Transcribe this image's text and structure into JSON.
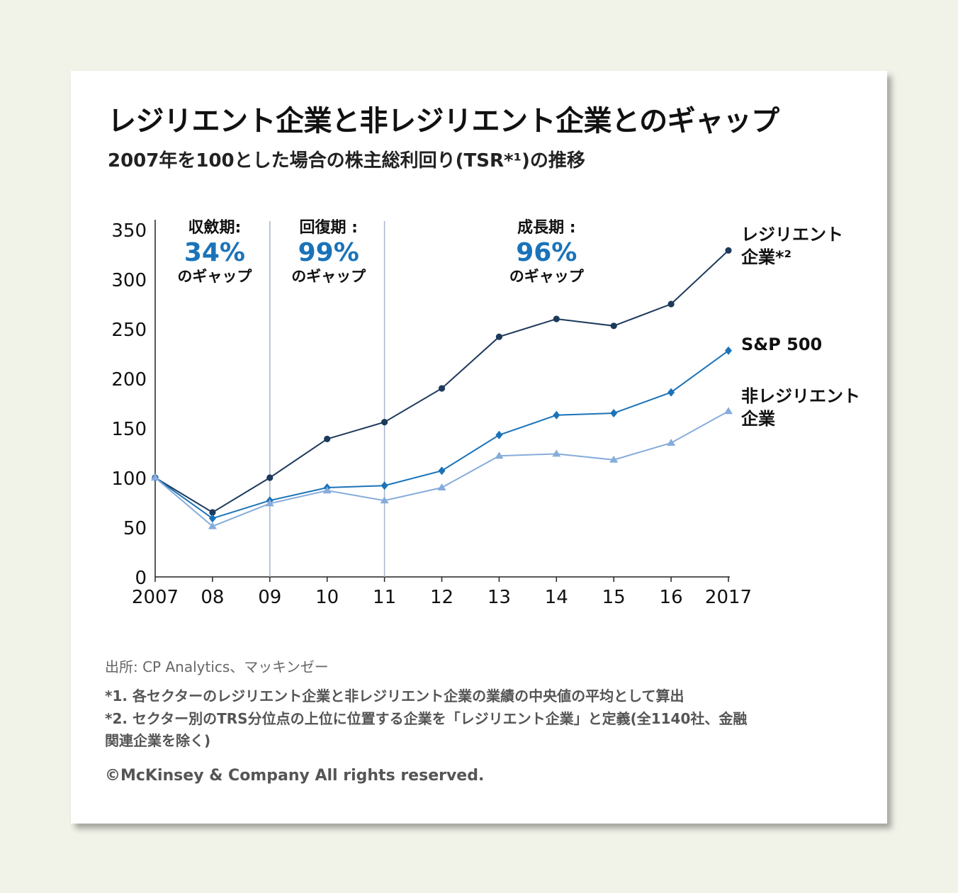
{
  "title": "レジリエント企業と非レジリエント企業とのギャップ",
  "subtitle": "2007年を100とした場合の株主総利回り(TSR*¹)の推移",
  "source": "出所: CP Analytics、マッキンゼー",
  "notes": [
    "*1. 各セクターのレジリエント企業と非レジリエント企業の業績の中央値の平均として算出",
    "*2. セクター別のTRS分位点の上位に位置する企業を「レジリエント企業」と定義(全1140社、金融",
    "関連企業を除く)"
  ],
  "copyright": "©McKinsey & Company All rights reserved.",
  "colors": {
    "resilient": "#1d3a5c",
    "sp500": "#1a73b9",
    "nonresilient": "#86acdb",
    "gap": "#1a73b9",
    "divider": "#a9b9cf"
  },
  "chart_data": {
    "type": "line",
    "categories": [
      "2007",
      "08",
      "09",
      "10",
      "11",
      "12",
      "13",
      "14",
      "15",
      "16",
      "2017"
    ],
    "ylim": [
      0,
      350
    ],
    "yticks": [
      0,
      50,
      100,
      150,
      200,
      250,
      300,
      350
    ],
    "series": [
      {
        "key": "resilient",
        "name_lines": [
          "レジリエント",
          "企業*²"
        ],
        "marker": "circle",
        "values": [
          100,
          65,
          100,
          139,
          156,
          190,
          242,
          260,
          253,
          275,
          329
        ]
      },
      {
        "key": "sp500",
        "name_lines": [
          "S&P 500"
        ],
        "marker": "diamond",
        "values": [
          100,
          59,
          77,
          90,
          92,
          107,
          143,
          163,
          165,
          186,
          228
        ]
      },
      {
        "key": "nonresilient",
        "name_lines": [
          "非レジリエント",
          "企業"
        ],
        "marker": "triangle",
        "values": [
          100,
          51,
          74,
          87,
          77,
          90,
          122,
          124,
          118,
          135,
          167
        ]
      }
    ],
    "dividers": [
      "09",
      "11"
    ],
    "periods": [
      {
        "label": "収斂期:",
        "gap": "34%",
        "suffix": "のギャップ"
      },
      {
        "label": "回復期 :",
        "gap": "99%",
        "suffix": "のギャップ"
      },
      {
        "label": "成長期 :",
        "gap": "96%",
        "suffix": "のギャップ"
      }
    ]
  }
}
